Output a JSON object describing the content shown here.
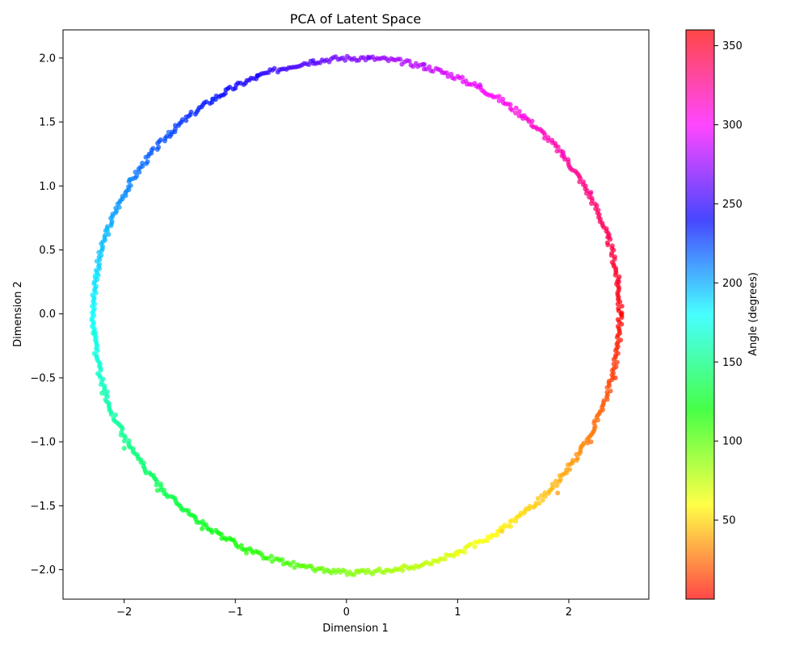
{
  "chart_data": {
    "type": "scatter",
    "title": "PCA of Latent Space",
    "xlabel": "Dimension 1",
    "ylabel": "Dimension 2",
    "xlim": [
      -2.55,
      2.72
    ],
    "ylim": [
      -2.23,
      2.22
    ],
    "xticks": [
      -2,
      -1,
      0,
      1,
      2
    ],
    "yticks": [
      -2.0,
      -1.5,
      -1.0,
      -0.5,
      0.0,
      0.5,
      1.0,
      1.5,
      2.0
    ],
    "xtick_labels": [
      "−2",
      "−1",
      "0",
      "1",
      "2"
    ],
    "ytick_labels": [
      "−2.0",
      "−1.5",
      "−1.0",
      "−0.5",
      "0.0",
      "0.5",
      "1.0",
      "1.5",
      "2.0"
    ],
    "grid": false,
    "point_color_encoding": "Angle (degrees)",
    "points": [
      {
        "x": 2.47,
        "y": 0.0,
        "angle": 0
      },
      {
        "x": 2.42,
        "y": -0.5,
        "angle": 12
      },
      {
        "x": 2.2,
        "y": -1.0,
        "angle": 24
      },
      {
        "x": 1.9,
        "y": -1.4,
        "angle": 36
      },
      {
        "x": 1.4,
        "y": -1.7,
        "angle": 48
      },
      {
        "x": 1.0,
        "y": -1.88,
        "angle": 60
      },
      {
        "x": 0.5,
        "y": -1.98,
        "angle": 72
      },
      {
        "x": 0.1,
        "y": -2.01,
        "angle": 84
      },
      {
        "x": -0.4,
        "y": -1.97,
        "angle": 96
      },
      {
        "x": -0.9,
        "y": -1.87,
        "angle": 108
      },
      {
        "x": -1.3,
        "y": -1.68,
        "angle": 120
      },
      {
        "x": -1.7,
        "y": -1.38,
        "angle": 132
      },
      {
        "x": -2.0,
        "y": -1.05,
        "angle": 144
      },
      {
        "x": -2.2,
        "y": -0.62,
        "angle": 156
      },
      {
        "x": -2.28,
        "y": -0.15,
        "angle": 168
      },
      {
        "x": -2.26,
        "y": 0.3,
        "angle": 180
      },
      {
        "x": -2.15,
        "y": 0.65,
        "angle": 192
      },
      {
        "x": -1.95,
        "y": 1.05,
        "angle": 204
      },
      {
        "x": -1.6,
        "y": 1.42,
        "angle": 216
      },
      {
        "x": -1.2,
        "y": 1.68,
        "angle": 228
      },
      {
        "x": -0.8,
        "y": 1.86,
        "angle": 240
      },
      {
        "x": -0.3,
        "y": 1.98,
        "angle": 252
      },
      {
        "x": 0.2,
        "y": 2.0,
        "angle": 264
      },
      {
        "x": 0.7,
        "y": 1.95,
        "angle": 276
      },
      {
        "x": 1.2,
        "y": 1.79,
        "angle": 288
      },
      {
        "x": 1.6,
        "y": 1.55,
        "angle": 300
      },
      {
        "x": 1.95,
        "y": 1.25,
        "angle": 312
      },
      {
        "x": 2.2,
        "y": 0.95,
        "angle": 324
      },
      {
        "x": 2.35,
        "y": 0.6,
        "angle": 336
      },
      {
        "x": 2.45,
        "y": 0.25,
        "angle": 348
      }
    ],
    "ring_samples": 720,
    "ring_center": [
      0.09,
      -0.01
    ],
    "ring_rx": 2.37,
    "ring_ry": 2.01,
    "ring_noise": 0.02,
    "colorbar": {
      "label": "Angle (degrees)",
      "min": 0,
      "max": 360,
      "ticks": [
        50,
        100,
        150,
        200,
        250,
        300,
        350
      ],
      "tick_labels": [
        "50",
        "100",
        "150",
        "200",
        "250",
        "300",
        "350"
      ],
      "colormap": "hsv"
    }
  }
}
